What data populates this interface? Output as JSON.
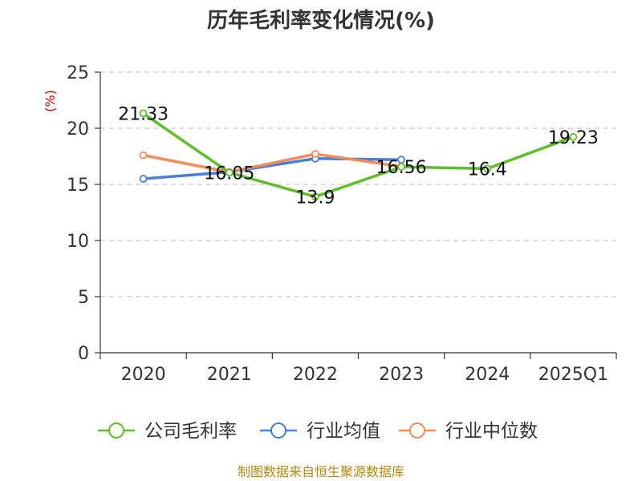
{
  "chart_data": {
    "type": "line",
    "title": "历年毛利率变化情况(%)",
    "ylabel": "(%)",
    "xlabel": "",
    "categories": [
      "2020",
      "2021",
      "2022",
      "2023",
      "2024",
      "2025Q1"
    ],
    "ylim": [
      0,
      25
    ],
    "yticks": [
      "0",
      "5",
      "10",
      "15",
      "20",
      "25"
    ],
    "grid": true,
    "legend_position": "bottom",
    "series": [
      {
        "name": "公司毛利率",
        "color": "#5cbf2a",
        "values": [
          21.33,
          16.05,
          13.9,
          16.56,
          16.4,
          19.23
        ],
        "labels": [
          "21.33",
          "16.05",
          "13.9",
          "16.56",
          "16.4",
          "19.23"
        ]
      },
      {
        "name": "行业均值",
        "color": "#4a7fd6",
        "values": [
          15.5,
          16.1,
          17.3,
          17.2,
          null,
          null
        ]
      },
      {
        "name": "行业中位数",
        "color": "#f28c5a",
        "values": [
          17.6,
          16.1,
          17.7,
          16.6,
          null,
          null
        ]
      }
    ]
  },
  "source": "制图数据来自恒生聚源数据库"
}
